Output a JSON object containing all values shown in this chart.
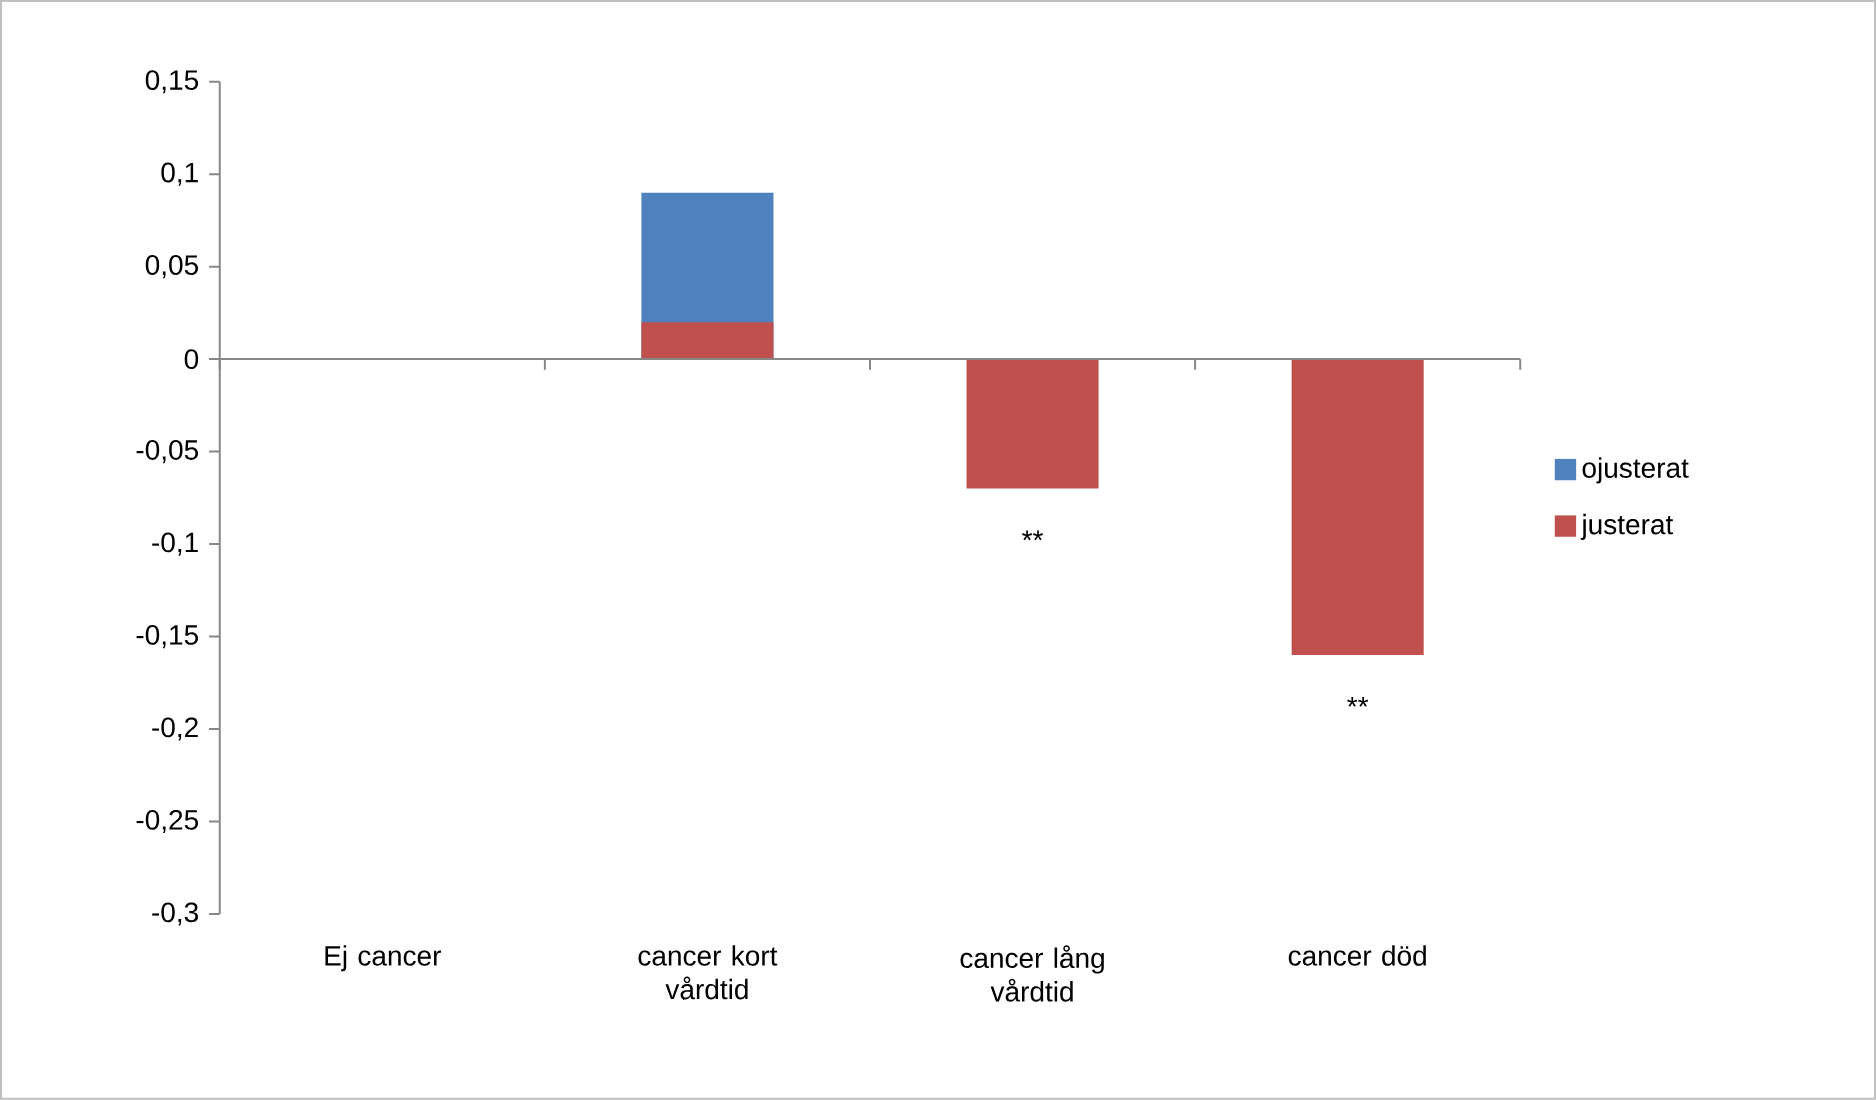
{
  "chart_data": {
    "type": "bar",
    "categories": [
      "Ej cancer",
      "cancer kort vårdtid",
      "cancer lång vårdtid",
      "cancer död"
    ],
    "series": [
      {
        "name": "ojusterat",
        "color": "#4f81bd",
        "values": [
          0,
          0.09,
          null,
          null
        ]
      },
      {
        "name": "justerat",
        "color": "#c0504d",
        "values": [
          0,
          0.02,
          -0.07,
          -0.16
        ]
      }
    ],
    "ylim": [
      -0.3,
      0.15
    ],
    "yticks": [
      {
        "value": -0.3,
        "label": "-0,3"
      },
      {
        "value": -0.25,
        "label": "-0,25"
      },
      {
        "value": -0.2,
        "label": "-0,2"
      },
      {
        "value": -0.15,
        "label": "-0,15"
      },
      {
        "value": -0.1,
        "label": "-0,1"
      },
      {
        "value": -0.05,
        "label": "-0,05"
      },
      {
        "value": 0,
        "label": "0"
      },
      {
        "value": 0.05,
        "label": "0,05"
      },
      {
        "value": 0.1,
        "label": "0,1"
      },
      {
        "value": 0.15,
        "label": "0,15"
      }
    ],
    "annotations": [
      {
        "text": "**",
        "x": "cancer lång vårdtid",
        "y": -0.07
      },
      {
        "text": "**",
        "x": "cancer död",
        "y": -0.16
      }
    ],
    "legend": "right"
  }
}
